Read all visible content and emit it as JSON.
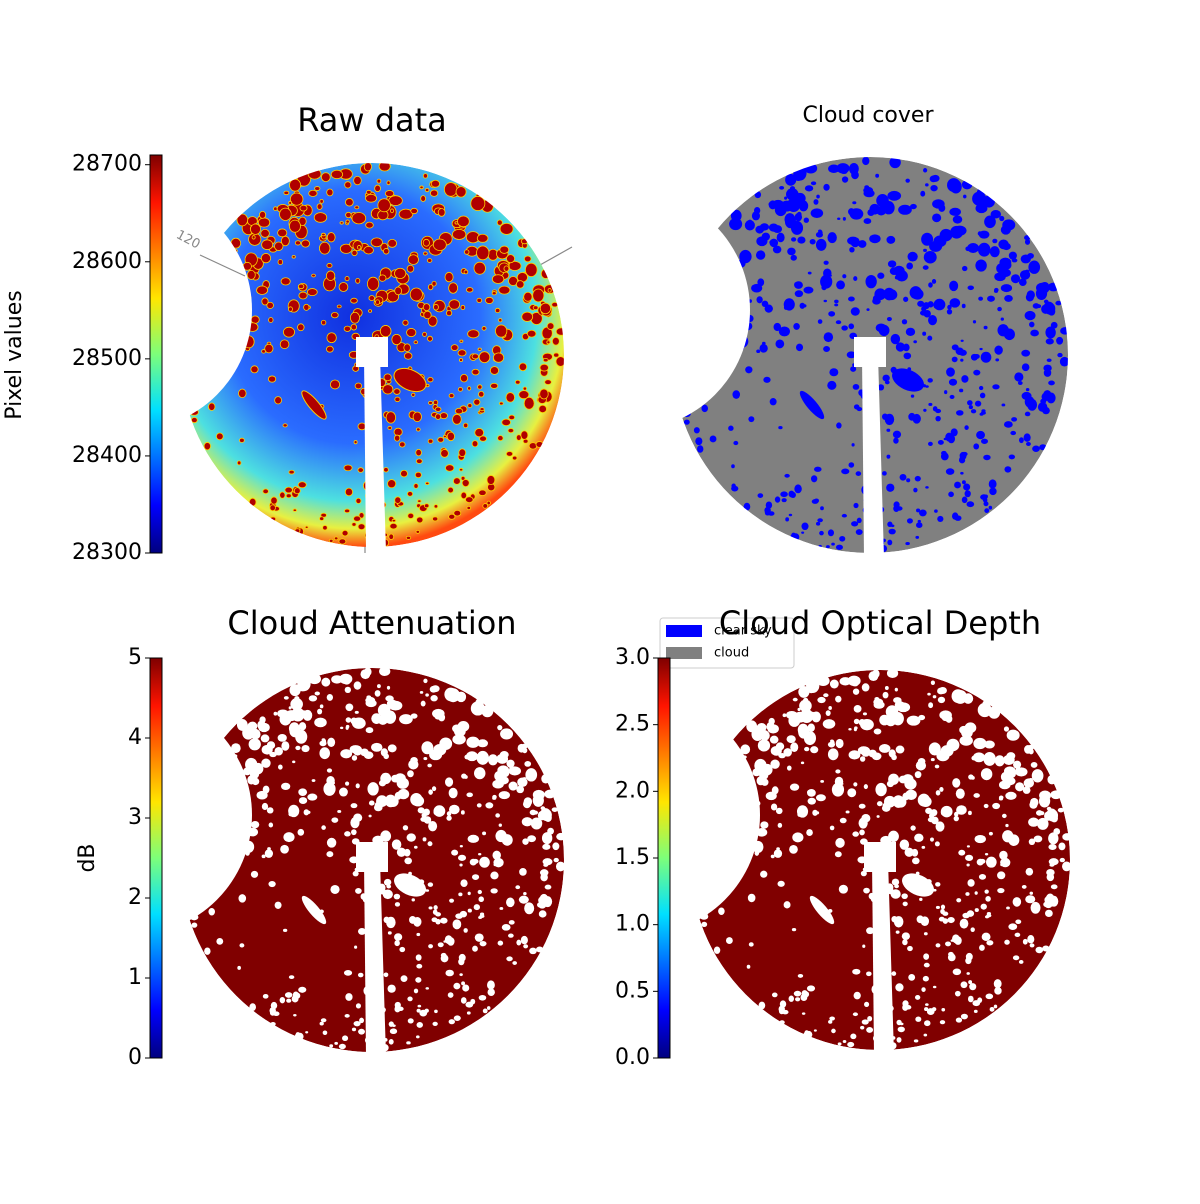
{
  "chart_data": [
    {
      "type": "image",
      "title": "Raw data",
      "colorbar": {
        "label": "Pixel values",
        "lim": [
          28300,
          28710
        ],
        "ticks": [
          28300,
          28400,
          28500,
          28600,
          28700
        ]
      },
      "annotations": [
        "120"
      ]
    },
    {
      "type": "image",
      "title": "Cloud cover",
      "series": [
        {
          "name": "clear sky",
          "color": "#0000ff"
        },
        {
          "name": "cloud",
          "color": "#808080"
        }
      ]
    },
    {
      "type": "image",
      "title": "Cloud Attenuation",
      "colorbar": {
        "label": "dB",
        "lim": [
          0,
          5
        ],
        "ticks": [
          0,
          1,
          2,
          3,
          4,
          5
        ]
      }
    },
    {
      "type": "image",
      "title": "Cloud Optical Depth",
      "colorbar": {
        "lim": [
          0,
          3
        ],
        "ticks": [
          {
            "value": 0,
            "label": "0.0"
          },
          0.5,
          {
            "value": 1,
            "label": "1.0"
          },
          1.5,
          {
            "value": 2,
            "label": "2.0"
          },
          2.5,
          {
            "value": 3,
            "label": "3.0"
          }
        ]
      }
    }
  ]
}
